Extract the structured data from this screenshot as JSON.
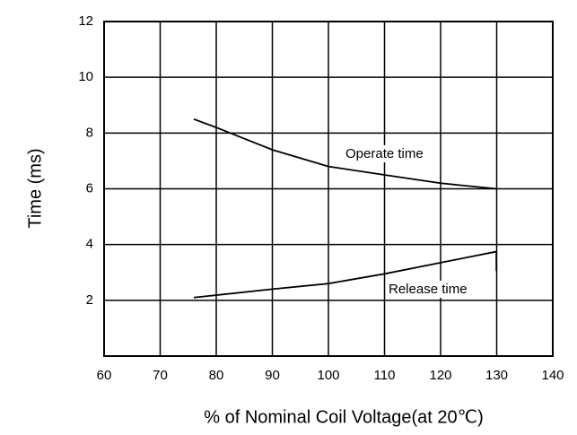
{
  "chart_data": {
    "type": "line",
    "xlabel": "% of Nominal Coil Voltage(at 20℃)",
    "ylabel": "Time  (ms)",
    "xlim": [
      60,
      140
    ],
    "xticks": [
      60,
      70,
      80,
      90,
      100,
      110,
      120,
      130,
      140
    ],
    "ylim": [
      0,
      12
    ],
    "yticks": [
      2,
      4,
      6,
      8,
      10,
      12
    ],
    "grid": true,
    "series": [
      {
        "name": "Operate time",
        "color": "#000000",
        "x": [
          76,
          80,
          90,
          100,
          110,
          120,
          130
        ],
        "values": [
          8.5,
          8.2,
          7.4,
          6.8,
          6.5,
          6.2,
          6.0
        ]
      },
      {
        "name": "Release time",
        "color": "#000000",
        "x": [
          76,
          90,
          100,
          110,
          120,
          130
        ],
        "values": [
          2.1,
          2.4,
          2.6,
          2.95,
          3.35,
          3.75
        ]
      }
    ]
  }
}
